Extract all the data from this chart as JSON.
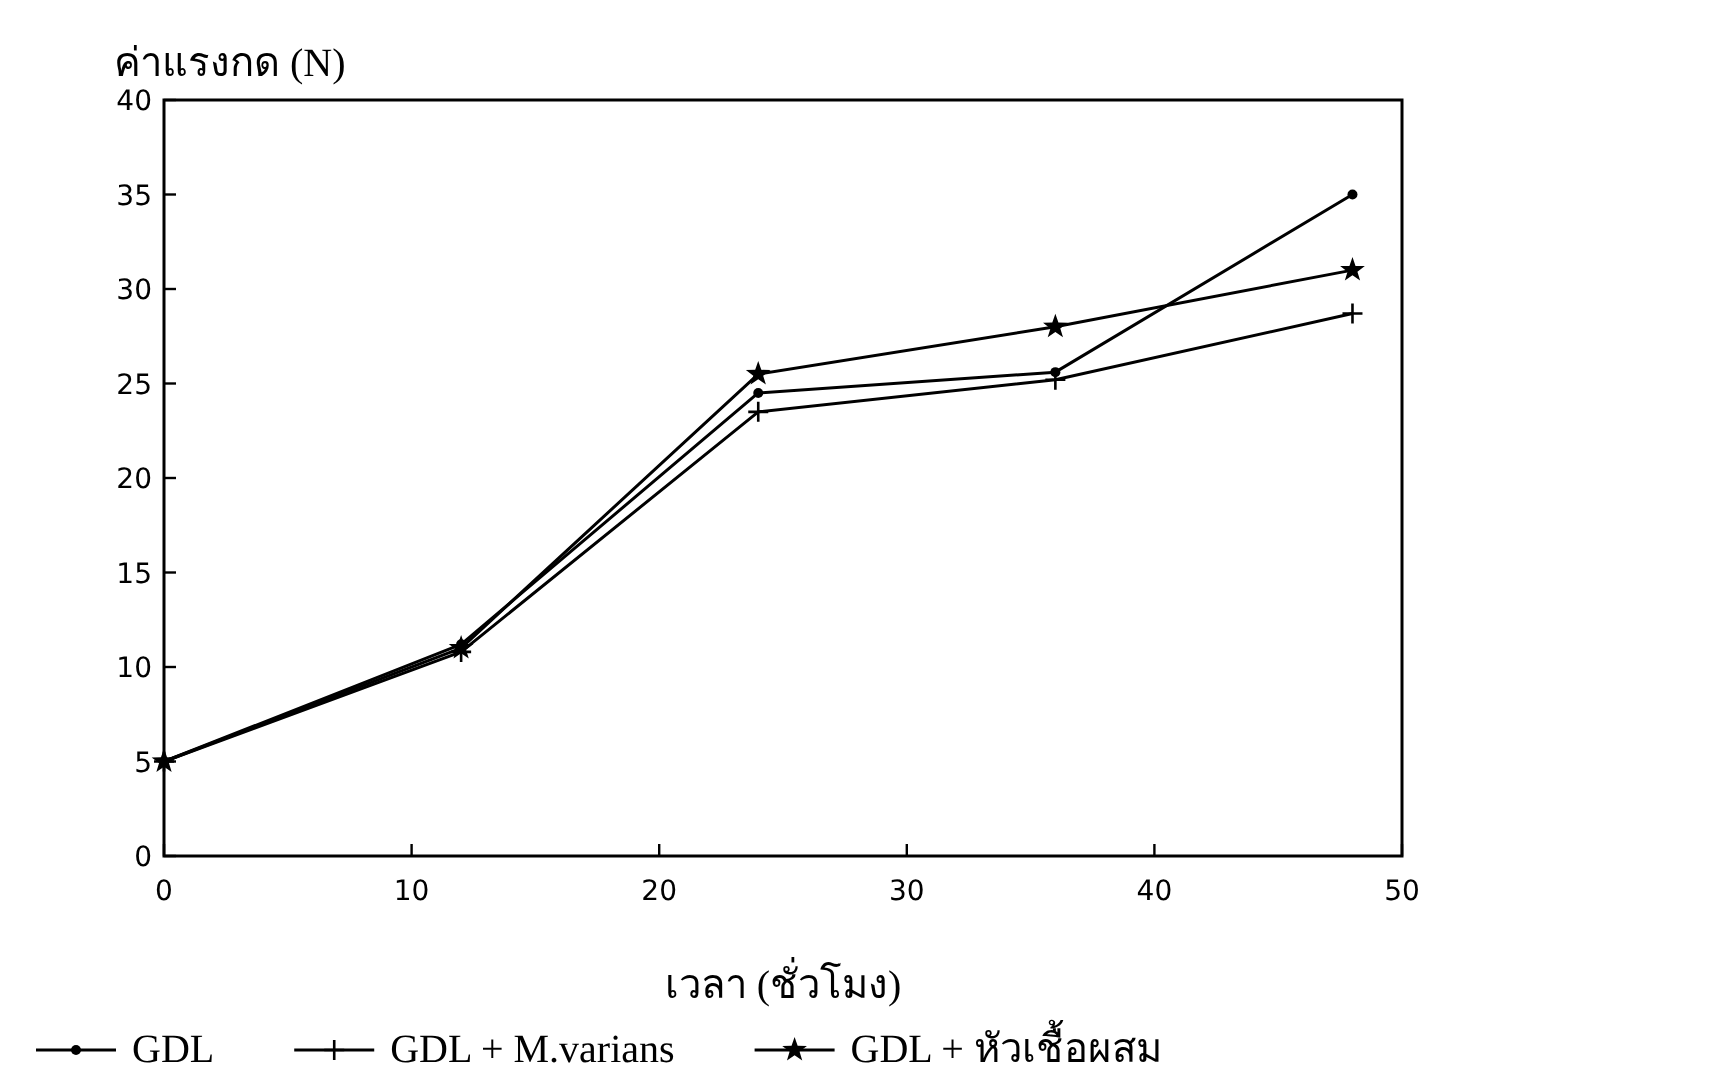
{
  "chart_data": {
    "type": "line",
    "xlabel": "เวลา (ชั่วโมง)",
    "ylabel": "ค่าแรงกด (N)",
    "x": [
      0,
      12,
      24,
      36,
      48
    ],
    "series": [
      {
        "name": "GDL",
        "color": "#000000",
        "marker": "circle",
        "values": [
          5,
          11.2,
          24.5,
          25.6,
          35
        ]
      },
      {
        "name": "GDL + M.varians",
        "color": "#000000",
        "marker": "cross",
        "values": [
          5,
          10.8,
          23.5,
          25.2,
          28.7
        ]
      },
      {
        "name": "GDL + หัวเชื้อผสม",
        "color": "#000000",
        "marker": "star",
        "values": [
          5,
          11,
          25.5,
          28,
          31
        ]
      }
    ],
    "xlim": [
      0,
      50
    ],
    "xticks": [
      0,
      10,
      20,
      30,
      40,
      50
    ],
    "ylim": [
      0,
      40
    ],
    "yticks": [
      0,
      5,
      10,
      15,
      20,
      25,
      30,
      35,
      40
    ],
    "grid": false,
    "legend": "bottom",
    "line_style": "solid"
  }
}
